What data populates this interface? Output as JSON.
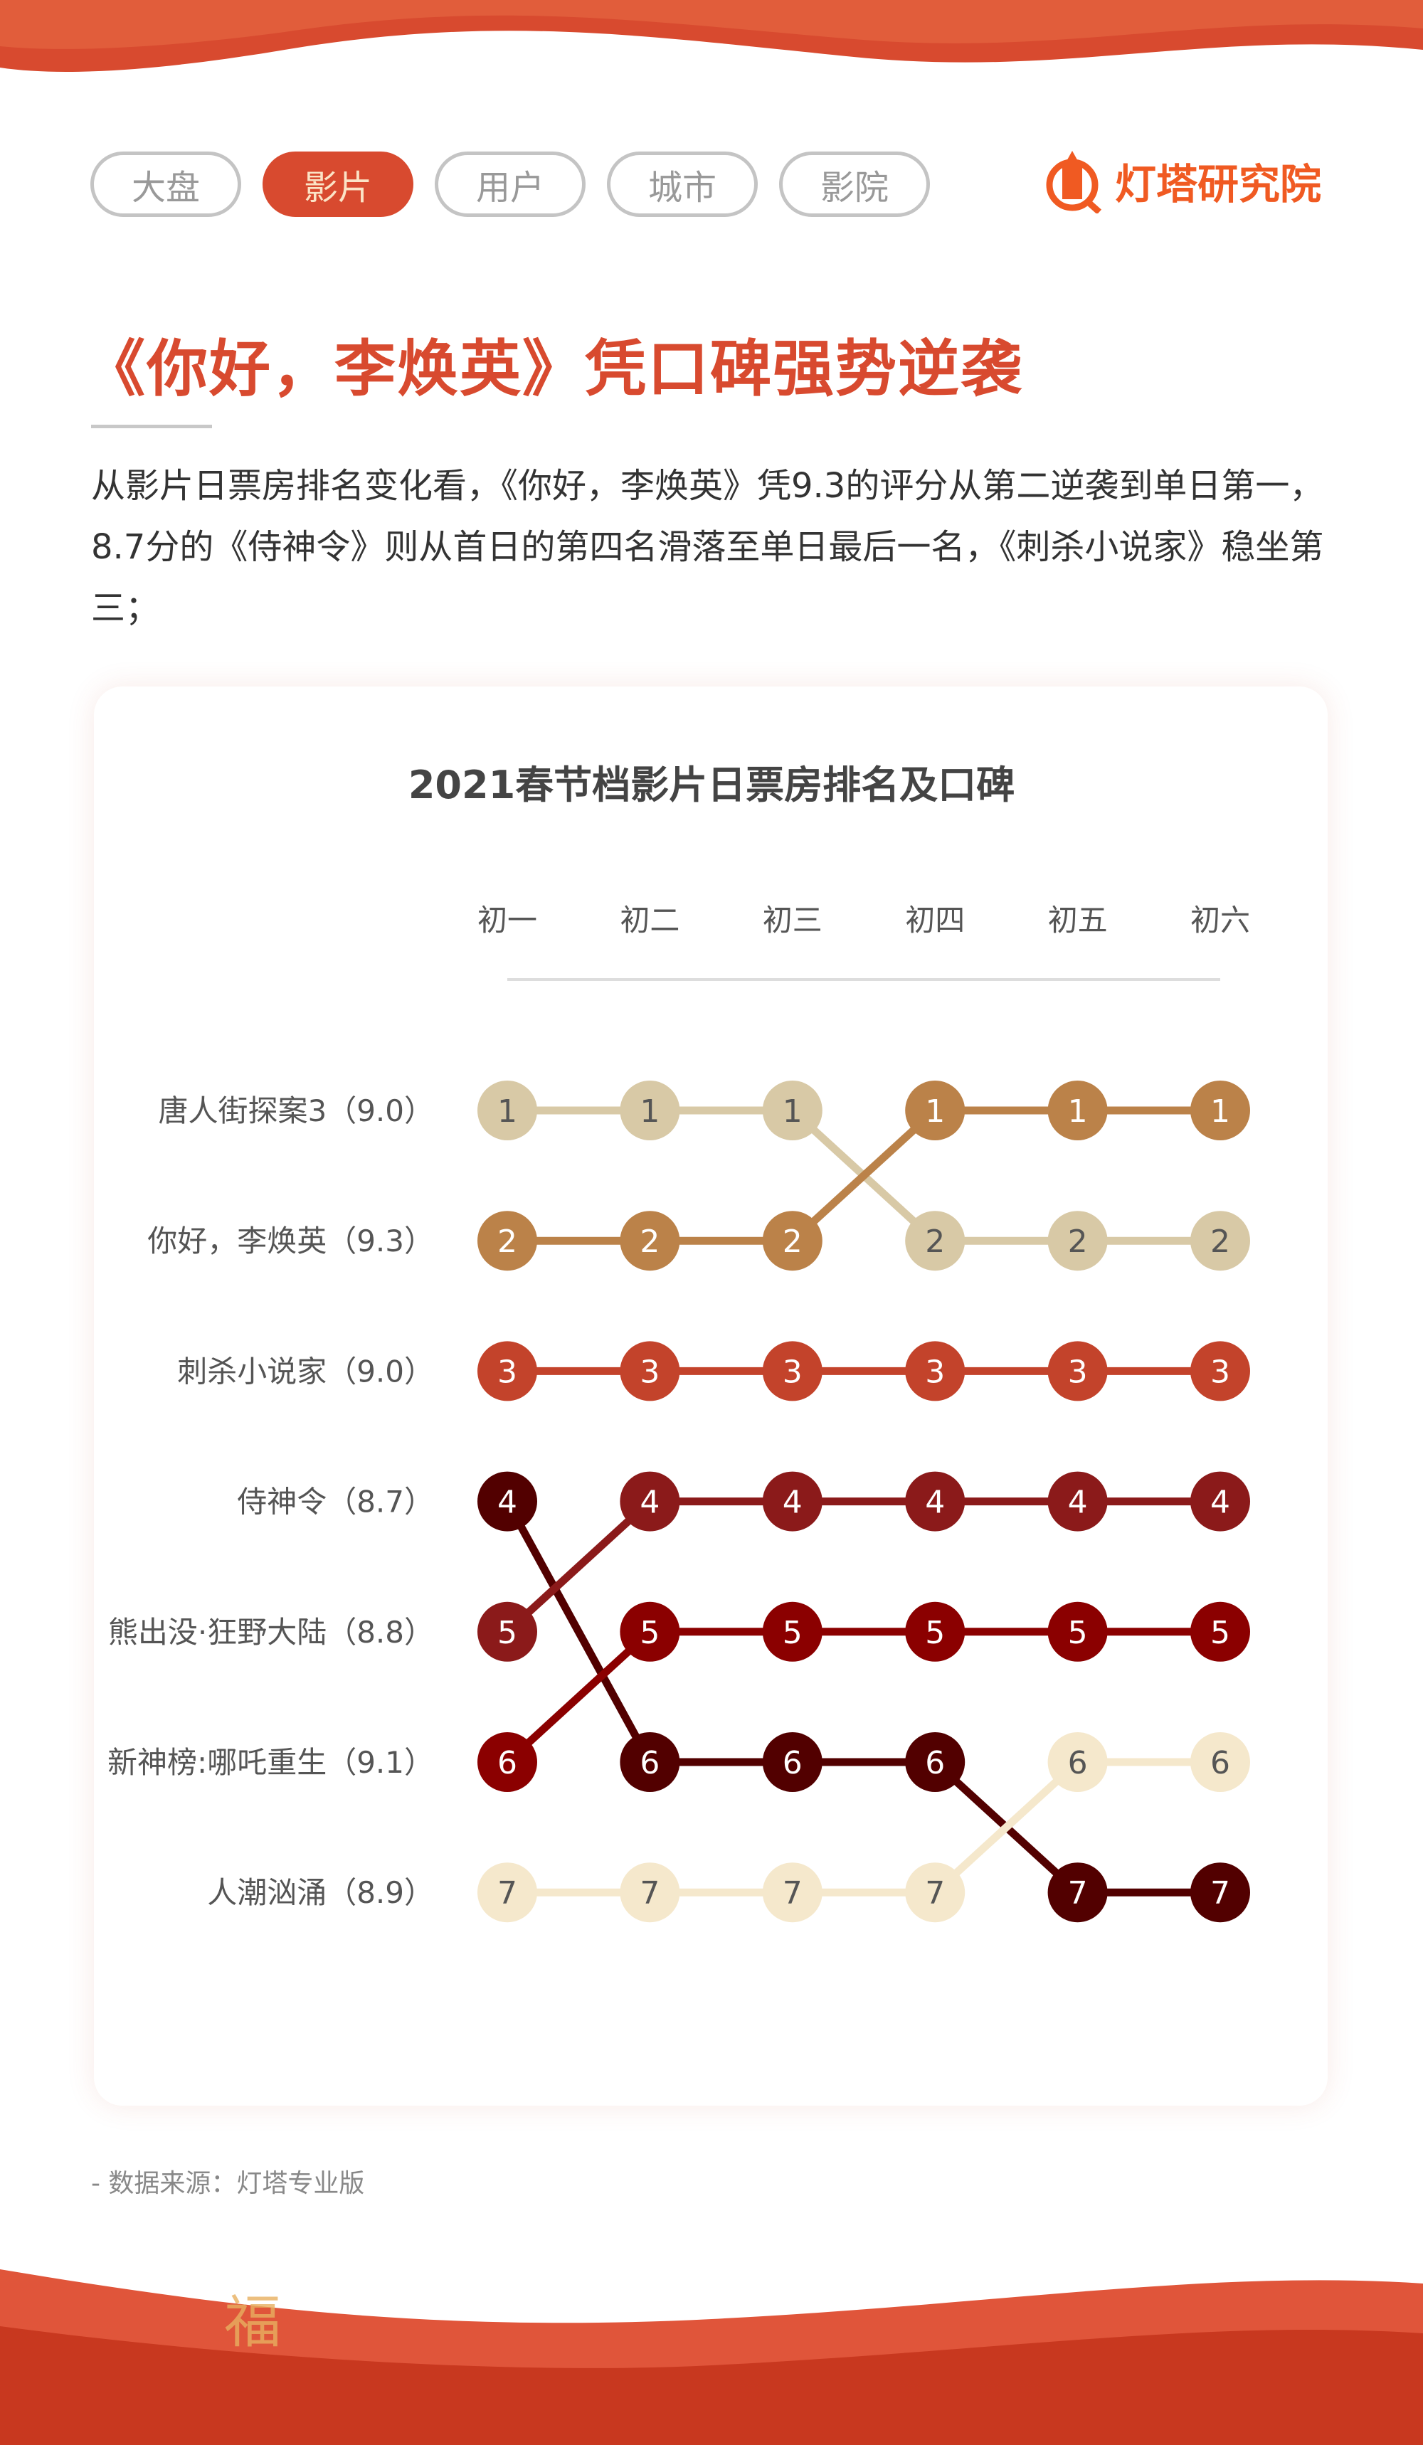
{
  "tabs": [
    {
      "label": "大盘"
    },
    {
      "label": "影片"
    },
    {
      "label": "用户"
    },
    {
      "label": "城市"
    },
    {
      "label": "影院"
    }
  ],
  "active_tab": 1,
  "logo": {
    "text": "灯塔研究院"
  },
  "headline": "《你好，李焕英》凭口碑强势逆袭",
  "description": "从影片日票房排名变化看，《你好，李焕英》凭9.3的评分从第二逆袭到单日第一，8.7分的《侍神令》则从首日的第四名滑落至单日最后一名，《刺杀小说家》稳坐第三；",
  "source": "- 数据来源：灯塔专业版",
  "colors": {
    "accent": "#d84a2f",
    "logo": "#f05a22"
  },
  "chart_data": {
    "type": "line",
    "title": "2021春节档影片日票房排名及口碑",
    "categories": [
      "初一",
      "初二",
      "初三",
      "初四",
      "初五",
      "初六"
    ],
    "row_labels": [
      "唐人街探案3（9.0）",
      "你好，李焕英（9.3）",
      "刺杀小说家（9.0）",
      "侍神令（8.7）",
      "熊出没·狂野大陆（8.8）",
      "新神榜:哪吒重生（9.1）",
      "人潮汹涌（8.9）"
    ],
    "ylim": [
      1,
      7
    ],
    "series": [
      {
        "name": "唐人街探案3",
        "rating": 9.0,
        "values": [
          1,
          1,
          1,
          2,
          2,
          2
        ],
        "color": "#d8c9a6",
        "text": "#555"
      },
      {
        "name": "你好，李焕英",
        "rating": 9.3,
        "values": [
          2,
          2,
          2,
          1,
          1,
          1
        ],
        "color": "#bb8249",
        "text": "#fff"
      },
      {
        "name": "刺杀小说家",
        "rating": 9.0,
        "values": [
          3,
          3,
          3,
          3,
          3,
          3
        ],
        "color": "#c3432b",
        "text": "#fff"
      },
      {
        "name": "侍神令",
        "rating": 8.7,
        "values": [
          4,
          6,
          6,
          6,
          7,
          7
        ],
        "color": "#520000",
        "text": "#fff"
      },
      {
        "name": "熊出没·狂野大陆",
        "rating": 8.8,
        "values": [
          5,
          4,
          4,
          4,
          4,
          4
        ],
        "color": "#8b1a1a",
        "text": "#fff"
      },
      {
        "name": "新神榜:哪吒重生",
        "rating": 9.1,
        "values": [
          6,
          5,
          5,
          5,
          5,
          5
        ],
        "color": "#8b0000",
        "text": "#fff"
      },
      {
        "name": "人潮汹涌",
        "rating": 8.9,
        "values": [
          7,
          7,
          7,
          7,
          6,
          6
        ],
        "color": "#f5e8cc",
        "text": "#555"
      }
    ]
  }
}
